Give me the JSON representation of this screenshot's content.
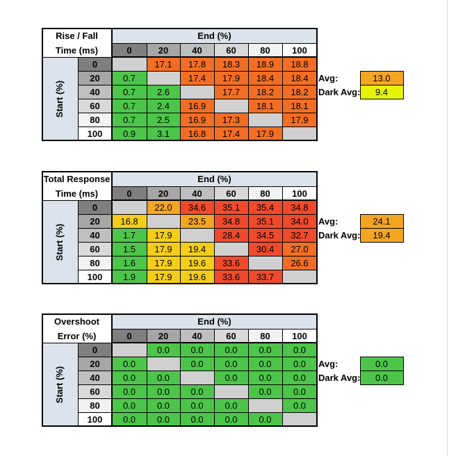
{
  "colors": {
    "header_bg": "#dde3ec",
    "diag_gray": "#d0d0d0",
    "green": "#4dc54a",
    "yellow": "#f3cd1a",
    "orange_light": "#f4a521",
    "orange": "#f26e25",
    "red": "#f04a2c",
    "avg_yellow": "#e5f20a"
  },
  "tables": [
    {
      "title_line1": "Rise / Fall",
      "title_line2": "Time (ms)",
      "col_group_label": "End (%)",
      "row_group_label": "Start (%)",
      "col_headers": [
        "0",
        "20",
        "40",
        "60",
        "80",
        "100"
      ],
      "row_headers": [
        "0",
        "20",
        "40",
        "60",
        "80",
        "100"
      ],
      "rows": [
        [
          "",
          "17.1",
          "17.8",
          "18.3",
          "18.9",
          "18.8"
        ],
        [
          "0.7",
          "",
          "17.4",
          "17.9",
          "18.4",
          "18.4"
        ],
        [
          "0.7",
          "2.6",
          "",
          "17.7",
          "18.2",
          "18.2"
        ],
        [
          "0.7",
          "2.4",
          "16.9",
          "",
          "18.1",
          "18.1"
        ],
        [
          "0.7",
          "2.5",
          "16.9",
          "17.3",
          "",
          "17.9"
        ],
        [
          "0.9",
          "3.1",
          "16.8",
          "17.4",
          "17.9",
          ""
        ]
      ],
      "colors": [
        [
          "diag",
          "orange",
          "orange",
          "orange",
          "orange",
          "orange"
        ],
        [
          "green",
          "diag",
          "orange",
          "orange",
          "orange",
          "orange"
        ],
        [
          "green",
          "green",
          "diag",
          "orange",
          "orange",
          "orange"
        ],
        [
          "green",
          "green",
          "orange",
          "diag",
          "orange",
          "orange"
        ],
        [
          "green",
          "green",
          "orange",
          "orange",
          "diag",
          "orange"
        ],
        [
          "green",
          "green",
          "orange",
          "orange",
          "orange",
          "diag"
        ]
      ],
      "avg_label": "Avg:",
      "avg_value": "13.0",
      "avg_color": "orange_light",
      "dark_avg_label": "Dark Avg:",
      "dark_avg_value": "9.4",
      "dark_avg_color": "avg_yellow"
    },
    {
      "title_line1": "Total Response",
      "title_line2": "Time (ms)",
      "col_group_label": "End (%)",
      "row_group_label": "Start (%)",
      "col_headers": [
        "0",
        "20",
        "40",
        "60",
        "80",
        "100"
      ],
      "row_headers": [
        "0",
        "20",
        "40",
        "60",
        "80",
        "100"
      ],
      "rows": [
        [
          "",
          "22.0",
          "34.6",
          "35.1",
          "35.4",
          "34.8"
        ],
        [
          "16.8",
          "",
          "23.5",
          "34.8",
          "35.1",
          "34.0"
        ],
        [
          "1.7",
          "17.9",
          "",
          "28.4",
          "34.5",
          "32.7"
        ],
        [
          "1.5",
          "17.9",
          "19.4",
          "",
          "30.4",
          "27.0"
        ],
        [
          "1.6",
          "17.9",
          "19.6",
          "33.6",
          "",
          "26.6"
        ],
        [
          "1.9",
          "17.9",
          "19.6",
          "33.6",
          "33.7",
          ""
        ]
      ],
      "colors": [
        [
          "diag",
          "orange_light",
          "red",
          "red",
          "red",
          "red"
        ],
        [
          "yellow",
          "diag",
          "orange_light",
          "red",
          "red",
          "red"
        ],
        [
          "green",
          "yellow",
          "diag",
          "red",
          "red",
          "red"
        ],
        [
          "green",
          "yellow",
          "yellow",
          "diag",
          "red",
          "orange"
        ],
        [
          "green",
          "yellow",
          "yellow",
          "red",
          "diag",
          "orange"
        ],
        [
          "green",
          "yellow",
          "yellow",
          "red",
          "red",
          "diag"
        ]
      ],
      "avg_label": "Avg:",
      "avg_value": "24.1",
      "avg_color": "orange_light",
      "dark_avg_label": "Dark Avg:",
      "dark_avg_value": "19.4",
      "dark_avg_color": "orange_light"
    },
    {
      "title_line1": "Overshoot",
      "title_line2": "Error (%)",
      "col_group_label": "End (%)",
      "row_group_label": "Start (%)",
      "col_headers": [
        "0",
        "20",
        "40",
        "60",
        "80",
        "100"
      ],
      "row_headers": [
        "0",
        "20",
        "40",
        "60",
        "80",
        "100"
      ],
      "rows": [
        [
          "",
          "0.0",
          "0.0",
          "0.0",
          "0.0",
          "0.0"
        ],
        [
          "0.0",
          "",
          "0.0",
          "0.0",
          "0.0",
          "0.0"
        ],
        [
          "0.0",
          "0.0",
          "",
          "0.0",
          "0.0",
          "0.0"
        ],
        [
          "0.0",
          "0.0",
          "0.0",
          "",
          "0.0",
          "0.0"
        ],
        [
          "0.0",
          "0.0",
          "0.0",
          "0.0",
          "",
          "0.0"
        ],
        [
          "0.0",
          "0.0",
          "0.0",
          "0.0",
          "0.0",
          ""
        ]
      ],
      "colors": [
        [
          "diag",
          "green",
          "green",
          "green",
          "green",
          "green"
        ],
        [
          "green",
          "diag",
          "green",
          "green",
          "green",
          "green"
        ],
        [
          "green",
          "green",
          "diag",
          "green",
          "green",
          "green"
        ],
        [
          "green",
          "green",
          "green",
          "diag",
          "green",
          "green"
        ],
        [
          "green",
          "green",
          "green",
          "green",
          "diag",
          "green"
        ],
        [
          "green",
          "green",
          "green",
          "green",
          "green",
          "diag"
        ]
      ],
      "avg_label": "Avg:",
      "avg_value": "0.0",
      "avg_color": "green",
      "dark_avg_label": "Dark Avg:",
      "dark_avg_value": "0.0",
      "dark_avg_color": "green"
    }
  ]
}
